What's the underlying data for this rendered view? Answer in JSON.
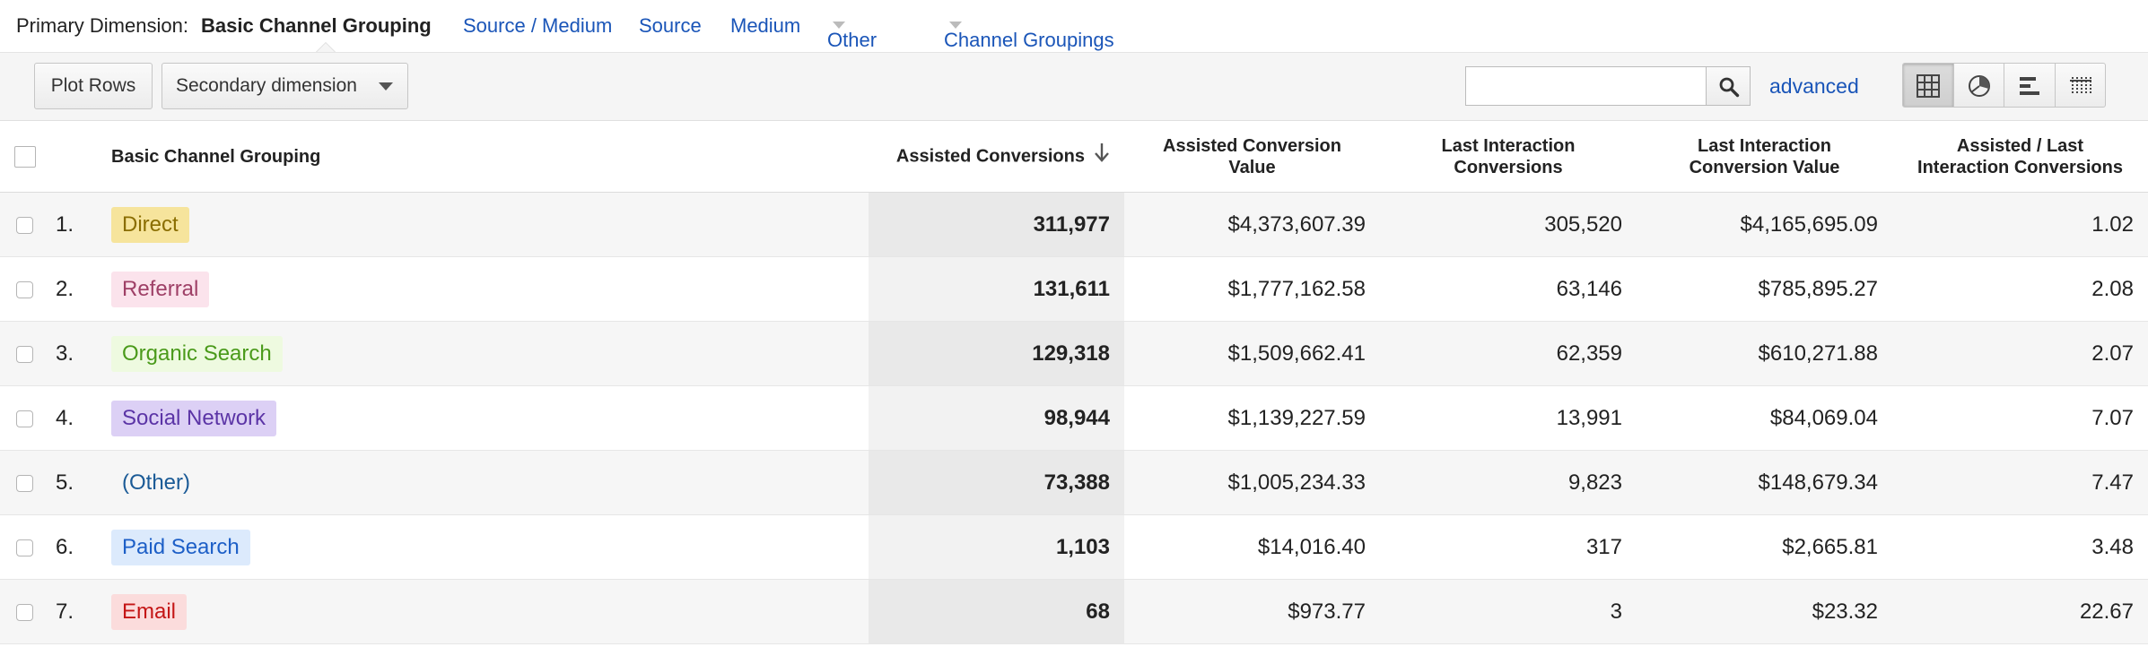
{
  "primary_dimension": {
    "label": "Primary Dimension:",
    "current": "Basic Channel Grouping",
    "options": [
      "Source / Medium",
      "Source",
      "Medium",
      "Other",
      "Channel Groupings"
    ]
  },
  "toolbar": {
    "plot_rows": "Plot Rows",
    "secondary_dimension": "Secondary dimension",
    "search_value": "",
    "advanced": "advanced"
  },
  "table": {
    "headers": {
      "dimension": "Basic Channel Grouping",
      "assisted_conversions": "Assisted Conversions",
      "assisted_conversion_value_1": "Assisted Conversion",
      "assisted_conversion_value_2": "Value",
      "last_interaction_conversions_1": "Last Interaction",
      "last_interaction_conversions_2": "Conversions",
      "last_interaction_value_1": "Last Interaction",
      "last_interaction_value_2": "Conversion Value",
      "ratio_1": "Assisted / Last",
      "ratio_2": "Interaction Conversions"
    },
    "rows": [
      {
        "index": "1.",
        "channel": "Direct",
        "assisted": "311,977",
        "assisted_value": "$4,373,607.39",
        "last_conv": "305,520",
        "last_value": "$4,165,695.09",
        "ratio": "1.02",
        "chip_bg": "#f6e49c",
        "chip_fg": "#8a6d00"
      },
      {
        "index": "2.",
        "channel": "Referral",
        "assisted": "131,611",
        "assisted_value": "$1,777,162.58",
        "last_conv": "63,146",
        "last_value": "$785,895.27",
        "ratio": "2.08",
        "chip_bg": "#fbe3ec",
        "chip_fg": "#9e3f66"
      },
      {
        "index": "3.",
        "channel": "Organic Search",
        "assisted": "129,318",
        "assisted_value": "$1,509,662.41",
        "last_conv": "62,359",
        "last_value": "$610,271.88",
        "ratio": "2.07",
        "chip_bg": "#eefae0",
        "chip_fg": "#4a9a1a"
      },
      {
        "index": "4.",
        "channel": "Social Network",
        "assisted": "98,944",
        "assisted_value": "$1,139,227.59",
        "last_conv": "13,991",
        "last_value": "$84,069.04",
        "ratio": "7.07",
        "chip_bg": "#dcd0f5",
        "chip_fg": "#5b34a6"
      },
      {
        "index": "5.",
        "channel": "(Other)",
        "assisted": "73,388",
        "assisted_value": "$1,005,234.33",
        "last_conv": "9,823",
        "last_value": "$148,679.34",
        "ratio": "7.47",
        "chip_bg": "transparent",
        "chip_fg": "#1a5a96"
      },
      {
        "index": "6.",
        "channel": "Paid Search",
        "assisted": "1,103",
        "assisted_value": "$14,016.40",
        "last_conv": "317",
        "last_value": "$2,665.81",
        "ratio": "3.48",
        "chip_bg": "#dceafc",
        "chip_fg": "#1d5fc7"
      },
      {
        "index": "7.",
        "channel": "Email",
        "assisted": "68",
        "assisted_value": "$973.77",
        "last_conv": "3",
        "last_value": "$23.32",
        "ratio": "22.67",
        "chip_bg": "#fbdcdc",
        "chip_fg": "#c41515"
      }
    ]
  },
  "icons": {
    "search": "search-icon",
    "sort": "sort-descending-icon",
    "views": [
      "table-view-icon",
      "pie-view-icon",
      "bar-view-icon",
      "comparison-view-icon"
    ]
  }
}
